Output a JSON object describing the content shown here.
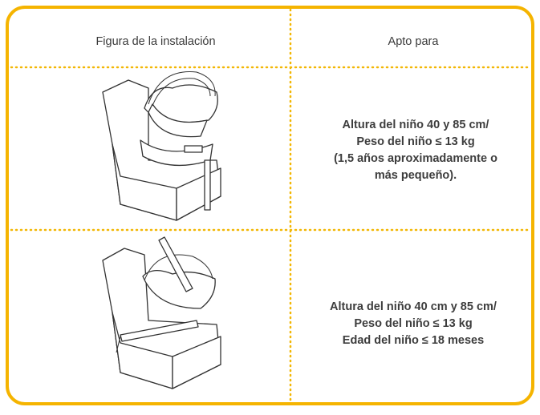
{
  "table": {
    "headers": [
      "Figura de la instalación",
      "Apto para"
    ],
    "rows": [
      {
        "text": [
          "Altura del niño 40 y 85 cm/",
          "Peso del niño ≤ 13 kg",
          "(1,5 años aproximadamente o",
          "más pequeño)."
        ]
      },
      {
        "text": [
          "Altura del niño 40 cm y 85 cm/",
          "Peso del niño ≤ 13 kg",
          "Edad del niño ≤ 18 meses"
        ]
      }
    ]
  }
}
